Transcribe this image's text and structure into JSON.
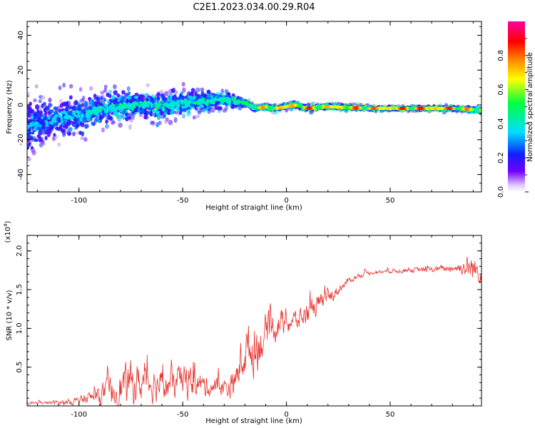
{
  "title": "C2E1.2023.034.00.29.R04",
  "colors": {
    "snr_line": "#e8302a",
    "background": "#ffffff",
    "axis": "#000000"
  },
  "chart_data": [
    {
      "type": "heatmap",
      "xlabel": "Height of straight line (km)",
      "ylabel": "Frequency (Hz)",
      "xlim": [
        -125,
        94
      ],
      "ylim": [
        -50,
        48
      ],
      "x_ticks": [
        -100,
        -50,
        0,
        50
      ],
      "y_ticks": [
        -40,
        -20,
        0,
        20,
        40
      ],
      "colorbar": {
        "label": "Normalized spectral amplitude",
        "range": [
          0,
          1
        ],
        "ticks": [
          "0.0",
          "0.2",
          "0.4",
          "0.6",
          "0.8"
        ],
        "colormap": "rainbow (white-violet-blue-cyan-green-yellow-red-magenta)"
      },
      "ridge": {
        "x": [
          -125,
          -110,
          -100,
          -90,
          -80,
          -70,
          -60,
          -50,
          -40,
          -30,
          -20,
          -15,
          -10,
          -5,
          0,
          5,
          10,
          20,
          40,
          60,
          80,
          94
        ],
        "center_freq": [
          -12,
          -8,
          -6,
          -3,
          -1,
          0,
          -1,
          1,
          2,
          3,
          1,
          -2,
          -1,
          -2,
          -1,
          0,
          -2,
          -1,
          -2,
          -2,
          -2,
          -3
        ],
        "spread": [
          20,
          18,
          16,
          14,
          12,
          11,
          11,
          10,
          9,
          6,
          3,
          2,
          2,
          2,
          2,
          2,
          2,
          2,
          1.5,
          1.5,
          1.5,
          2
        ],
        "peak_amplitude": [
          0.3,
          0.35,
          0.4,
          0.45,
          0.5,
          0.55,
          0.55,
          0.5,
          0.5,
          0.5,
          0.6,
          0.7,
          0.8,
          0.85,
          0.9,
          0.9,
          0.9,
          0.85,
          0.9,
          0.95,
          0.95,
          0.7
        ]
      }
    },
    {
      "type": "line",
      "xlabel": "Height of straight line (km)",
      "ylabel": "SNR (10 * v/v)",
      "y_scale_label": "(x10",
      "y_scale_exp": "4",
      "xlim": [
        -125,
        94
      ],
      "ylim": [
        0,
        2.2
      ],
      "x_ticks": [
        -100,
        -50,
        0,
        50
      ],
      "y_ticks": [
        0.5,
        1.0,
        1.5,
        2.0
      ],
      "series": [
        {
          "x": [
            -125,
            -115,
            -105,
            -100,
            -95,
            -90,
            -85,
            -80,
            -75,
            -70,
            -65,
            -60,
            -55,
            -50,
            -45,
            -40,
            -35,
            -30,
            -25,
            -22,
            -20,
            -18,
            -15,
            -12,
            -10,
            -5,
            0,
            5,
            10,
            15,
            20,
            25,
            30,
            35,
            40,
            50,
            60,
            70,
            80,
            85,
            88,
            90,
            94
          ],
          "mean": [
            0.03,
            0.04,
            0.05,
            0.07,
            0.1,
            0.14,
            0.18,
            0.24,
            0.28,
            0.3,
            0.3,
            0.27,
            0.27,
            0.32,
            0.3,
            0.26,
            0.24,
            0.24,
            0.28,
            0.6,
            0.7,
            0.72,
            0.75,
            0.85,
            0.95,
            1.05,
            1.08,
            1.1,
            1.2,
            1.3,
            1.38,
            1.5,
            1.62,
            1.68,
            1.72,
            1.74,
            1.75,
            1.76,
            1.78,
            1.79,
            1.78,
            1.76,
            1.74
          ],
          "noise": [
            0.03,
            0.03,
            0.06,
            0.08,
            0.12,
            0.18,
            0.3,
            0.38,
            0.42,
            0.38,
            0.35,
            0.3,
            0.3,
            0.36,
            0.3,
            0.22,
            0.2,
            0.2,
            0.3,
            0.42,
            0.48,
            0.5,
            0.55,
            0.42,
            0.35,
            0.3,
            0.26,
            0.22,
            0.22,
            0.22,
            0.15,
            0.1,
            0.06,
            0.05,
            0.04,
            0.04,
            0.05,
            0.06,
            0.08,
            0.15,
            0.28,
            0.3,
            0.2
          ]
        }
      ]
    }
  ]
}
